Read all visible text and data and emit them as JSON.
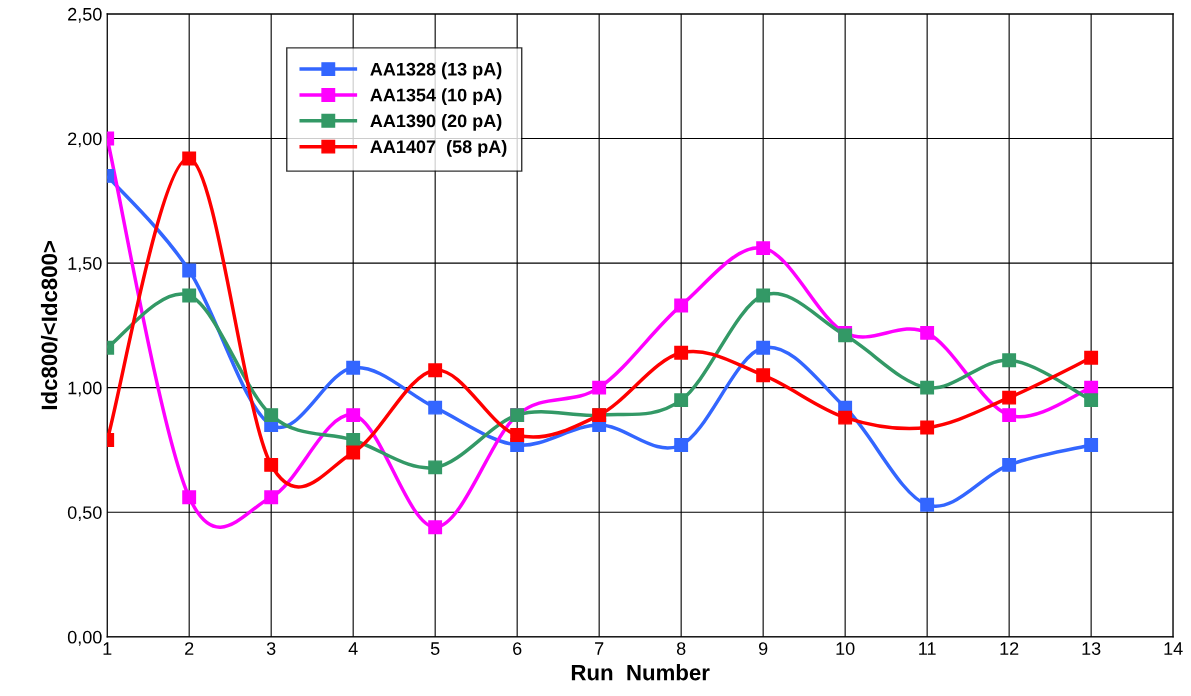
{
  "chart_data": {
    "type": "line",
    "xlabel": "Run  Number",
    "ylabel": "Idc800/<Idc800>",
    "x": [
      1,
      2,
      3,
      4,
      5,
      6,
      7,
      8,
      9,
      10,
      11,
      12,
      13
    ],
    "series": [
      {
        "name": "AA1328 (13 pA)",
        "color": "#3366ff",
        "values": [
          1.85,
          1.47,
          0.85,
          1.08,
          0.92,
          0.77,
          0.85,
          0.77,
          1.16,
          0.92,
          0.53,
          0.69,
          0.77
        ]
      },
      {
        "name": "AA1354 (10 pA)",
        "color": "#ff00ff",
        "values": [
          2.0,
          0.56,
          0.56,
          0.89,
          0.44,
          0.89,
          1.0,
          1.33,
          1.56,
          1.22,
          1.22,
          0.89,
          1.0
        ]
      },
      {
        "name": "AA1390 (20 pA)",
        "color": "#339966",
        "values": [
          1.16,
          1.37,
          0.89,
          0.79,
          0.68,
          0.89,
          0.89,
          0.95,
          1.37,
          1.21,
          1.0,
          1.11,
          0.95
        ]
      },
      {
        "name": "AA1407  (58 pA)",
        "color": "#ff0000",
        "values": [
          0.79,
          1.92,
          0.69,
          0.74,
          1.07,
          0.81,
          0.89,
          1.14,
          1.05,
          0.88,
          0.84,
          0.96,
          1.12
        ]
      }
    ],
    "xlim": [
      1,
      14
    ],
    "xticks": [
      1,
      2,
      3,
      4,
      5,
      6,
      7,
      8,
      9,
      10,
      11,
      12,
      13,
      14
    ],
    "ylim": [
      0,
      2.5
    ],
    "yticks": [
      {
        "value": 0,
        "label": "0,00"
      },
      {
        "value": 0.5,
        "label": "0,50"
      },
      {
        "value": 1.0,
        "label": "1,00"
      },
      {
        "value": 1.5,
        "label": "1,50"
      },
      {
        "value": 2.0,
        "label": "2,00"
      },
      {
        "value": 2.5,
        "label": "2,50"
      }
    ],
    "grid": true,
    "legend": "top left",
    "marker": "square",
    "line_style": "solid"
  }
}
